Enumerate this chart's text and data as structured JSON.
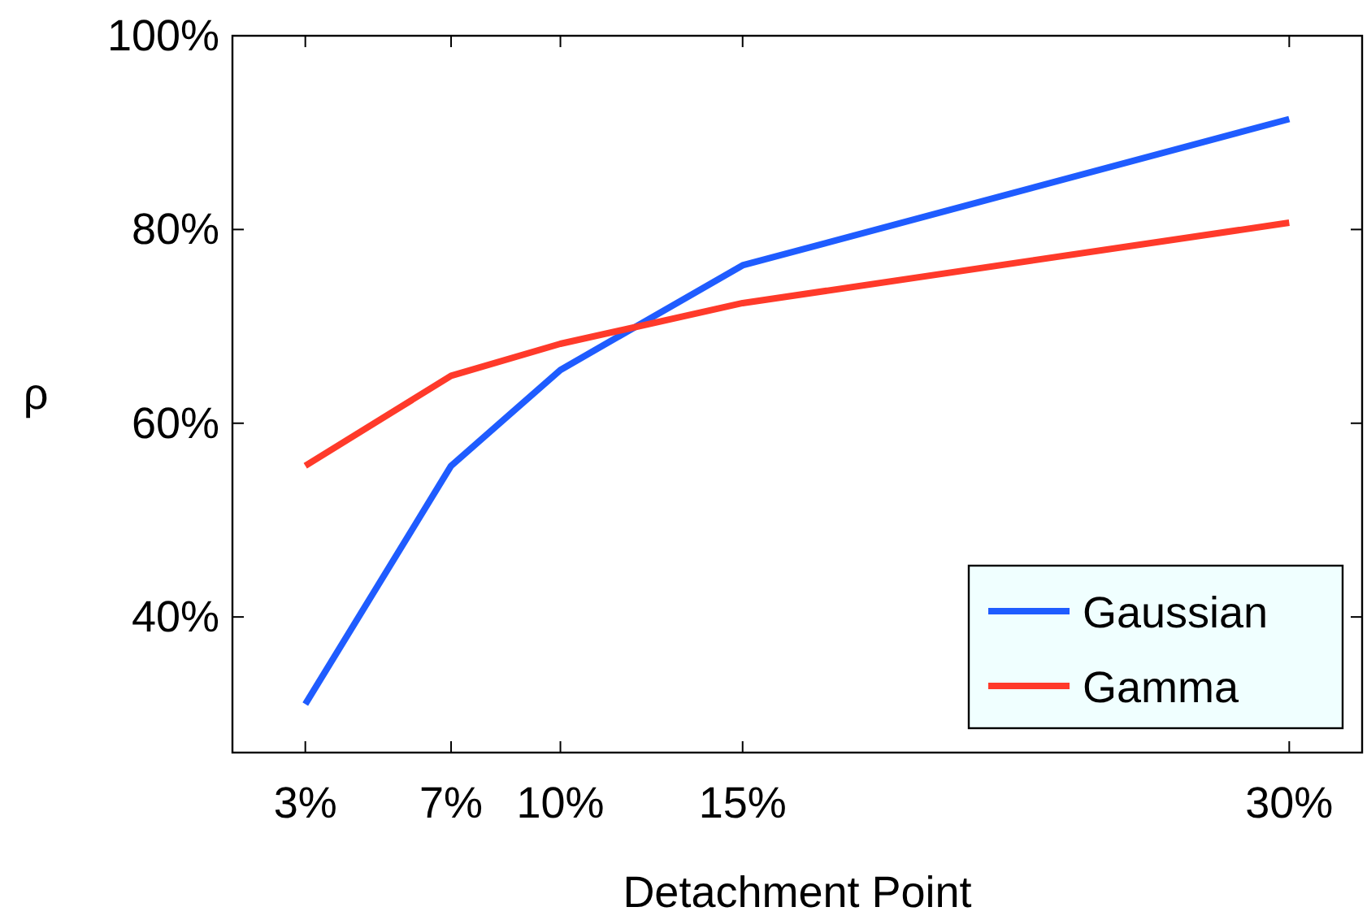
{
  "chart_data": {
    "type": "line",
    "xlabel": "Detachment Point",
    "ylabel": "ρ",
    "x": [
      3,
      7,
      10,
      15,
      30
    ],
    "xlim": [
      1,
      32
    ],
    "xticks": [
      {
        "value": 3,
        "label": "3%"
      },
      {
        "value": 7,
        "label": "7%"
      },
      {
        "value": 10,
        "label": "10%"
      },
      {
        "value": 15,
        "label": "15%"
      },
      {
        "value": 30,
        "label": "30%"
      }
    ],
    "ylim": [
      26,
      100
    ],
    "yticks": [
      {
        "value": 40,
        "label": "40%"
      },
      {
        "value": 60,
        "label": "60%"
      },
      {
        "value": 80,
        "label": "80%"
      },
      {
        "value": 100,
        "label": "100%"
      }
    ],
    "series": [
      {
        "name": "Gaussian",
        "color": "#1f5cff",
        "values": [
          31,
          55.6,
          65.5,
          76.3,
          91.4
        ]
      },
      {
        "name": "Gamma",
        "color": "#ff3a2a",
        "values": [
          55.6,
          64.9,
          68.2,
          72.4,
          80.7
        ]
      }
    ],
    "legend": "bottom right",
    "grid": false,
    "marker": "none",
    "line_style": "solid"
  }
}
